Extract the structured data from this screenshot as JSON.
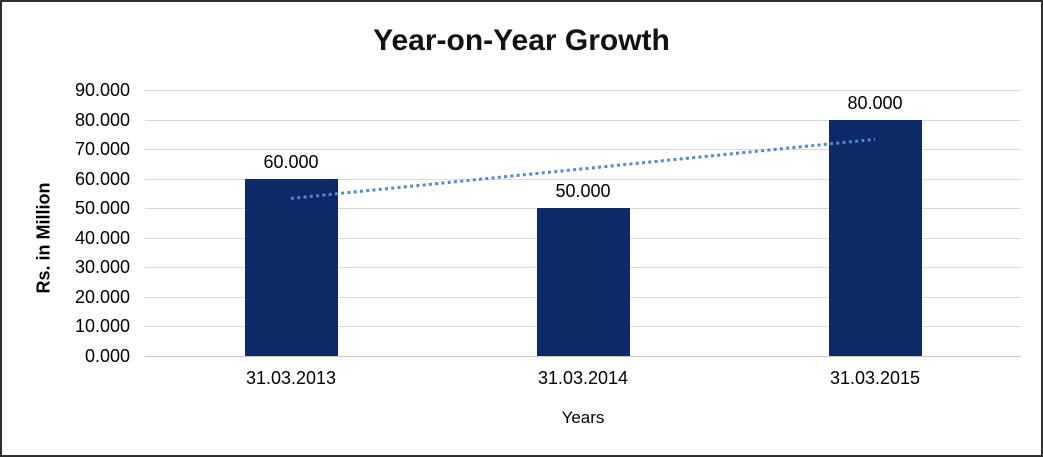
{
  "window": {
    "background": "#ffffff",
    "border_color": "#2e2e2e"
  },
  "chart_data": {
    "type": "bar",
    "title": "Year-on-Year Growth",
    "xlabel": "Years",
    "ylabel": "Rs. in Million",
    "categories": [
      "31.03.2013",
      "31.03.2014",
      "31.03.2015"
    ],
    "values": [
      60000,
      50000,
      80000
    ],
    "bar_labels": [
      "60.000",
      "50.000",
      "80.000"
    ],
    "y_ticks": [
      "90.000",
      "80.000",
      "70.000",
      "60.000",
      "50.000",
      "40.000",
      "30.000",
      "20.000",
      "10.000",
      "0.000"
    ],
    "ylim": [
      0,
      90000
    ],
    "y_tick_step": 10000,
    "grid": true,
    "legend_position": "none",
    "bar_color": "#0b2a67",
    "gridline_color": "#d9d9d9",
    "axis_line_color": "#c6c6c6",
    "text_color": "#000000",
    "trendline": {
      "type": "linear",
      "style": "dotted",
      "color": "#5089cd",
      "values": [
        53333,
        63333,
        73333
      ]
    }
  }
}
